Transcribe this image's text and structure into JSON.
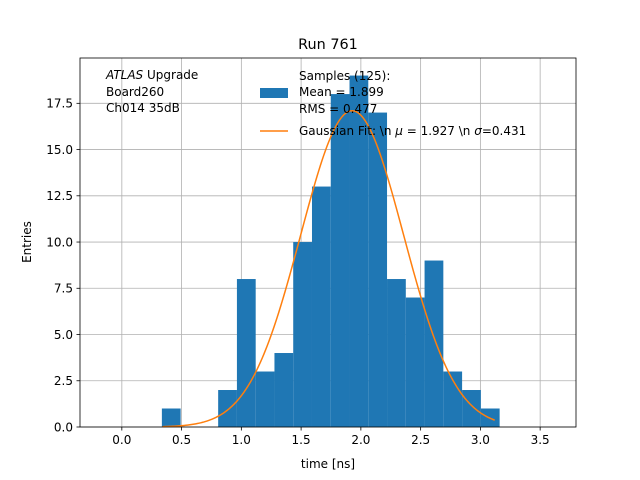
{
  "chart_data": {
    "type": "bar",
    "title": "Run 761",
    "xlabel": "time [ns]",
    "ylabel": "Entries",
    "xlim": [
      -0.35,
      3.8
    ],
    "ylim": [
      0,
      19.95
    ],
    "grid": true,
    "xticks": [
      0.0,
      0.5,
      1.0,
      1.5,
      2.0,
      2.5,
      3.0,
      3.5
    ],
    "xtick_labels": [
      "0.0",
      "0.5",
      "1.0",
      "1.5",
      "2.0",
      "2.5",
      "3.0",
      "3.5"
    ],
    "yticks": [
      0.0,
      2.5,
      5.0,
      7.5,
      10.0,
      12.5,
      15.0,
      17.5
    ],
    "ytick_labels": [
      "0.0",
      "2.5",
      "5.0",
      "7.5",
      "10.0",
      "12.5",
      "15.0",
      "17.5"
    ],
    "bin_width": 0.157,
    "bins": [
      {
        "x0": 0.335,
        "count": 1
      },
      {
        "x0": 0.806,
        "count": 2
      },
      {
        "x0": 0.963,
        "count": 8
      },
      {
        "x0": 1.12,
        "count": 3
      },
      {
        "x0": 1.277,
        "count": 4
      },
      {
        "x0": 1.434,
        "count": 10
      },
      {
        "x0": 1.591,
        "count": 13
      },
      {
        "x0": 1.748,
        "count": 18
      },
      {
        "x0": 1.905,
        "count": 19
      },
      {
        "x0": 2.062,
        "count": 17
      },
      {
        "x0": 2.219,
        "count": 8
      },
      {
        "x0": 2.376,
        "count": 7
      },
      {
        "x0": 2.533,
        "count": 9
      },
      {
        "x0": 2.69,
        "count": 3
      },
      {
        "x0": 2.847,
        "count": 2
      },
      {
        "x0": 3.004,
        "count": 1
      }
    ],
    "fit": {
      "mu": 1.927,
      "sigma": 0.431,
      "amplitude": 17.1,
      "x_range": [
        0.34,
        3.12
      ]
    },
    "colors": {
      "bars": "#1f77b4",
      "fit": "#ff7f0e",
      "grid": "#b0b0b0"
    },
    "legend": {
      "position": "top-center",
      "samples_line1": "Samples (125):",
      "samples_line2": " Mean = 1.899",
      "samples_line3": " RMS = 0.477",
      "fit_label": "Gaussian Fit: \\n $\\mu$ = 1.927 \\n $\\sigma$=0.431",
      "fit_label_prefix": "Gaussian Fit: \\n ",
      "fit_mu_symbol": "μ",
      "fit_mu_value": " = 1.927 \\n ",
      "fit_sigma_symbol": "σ",
      "fit_sigma_value": "=0.431"
    },
    "annotation": {
      "italic_part": "ATLAS",
      "line1_rest": " Upgrade",
      "line2": " Board260",
      "line3": " Ch014 35dB"
    }
  }
}
